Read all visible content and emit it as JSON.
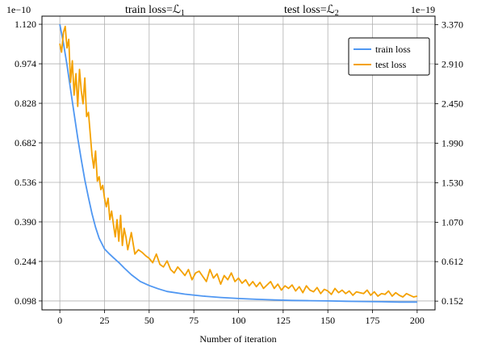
{
  "chart_data": {
    "type": "line",
    "title_left": "train loss=ℒ",
    "title_left_sub": "1",
    "title_right": "test loss=ℒ",
    "title_right_sub": "2",
    "xlabel": "Number of iteration",
    "left_scale_label": "1e−10",
    "right_scale_label": "1e−19",
    "xlim": [
      -10,
      210
    ],
    "xticks": [
      0,
      25,
      50,
      75,
      100,
      125,
      150,
      175,
      200
    ],
    "xtick_labels": [
      "0",
      "25",
      "50",
      "75",
      "100",
      "125",
      "150",
      "175",
      "200"
    ],
    "ylim_left": [
      0.065,
      1.15
    ],
    "yticks_left": [
      0.098,
      0.244,
      0.39,
      0.536,
      0.682,
      0.828,
      0.974,
      1.12
    ],
    "ytick_labels_left": [
      "0.098",
      "0.244",
      "0.390",
      "0.536",
      "0.682",
      "0.828",
      "0.974",
      "1.120"
    ],
    "ylim_right": [
      0.05,
      3.47
    ],
    "yticks_right": [
      0.152,
      0.612,
      1.07,
      1.53,
      1.99,
      2.45,
      2.91,
      3.37
    ],
    "ytick_labels_right": [
      "0.152",
      "0.612",
      "1.070",
      "1.530",
      "1.990",
      "2.450",
      "2.910",
      "3.370"
    ],
    "grid": true,
    "legend_position": "top-right",
    "series": [
      {
        "name": "train loss",
        "axis": "left",
        "color": "#4f97f2",
        "x": [
          0,
          2,
          4,
          6,
          8,
          10,
          12,
          14,
          16,
          18,
          20,
          22,
          25,
          28,
          30,
          33,
          36,
          40,
          45,
          50,
          55,
          60,
          70,
          80,
          90,
          100,
          110,
          120,
          130,
          140,
          150,
          160,
          170,
          180,
          190,
          200
        ],
        "values": [
          1.12,
          1.05,
          0.97,
          0.88,
          0.79,
          0.7,
          0.62,
          0.545,
          0.48,
          0.42,
          0.37,
          0.33,
          0.29,
          0.27,
          0.258,
          0.24,
          0.22,
          0.195,
          0.17,
          0.155,
          0.143,
          0.133,
          0.123,
          0.116,
          0.111,
          0.107,
          0.104,
          0.102,
          0.1,
          0.099,
          0.098,
          0.097,
          0.096,
          0.095,
          0.094,
          0.094
        ]
      },
      {
        "name": "test loss",
        "axis": "right",
        "color": "#f4a100",
        "x": [
          0,
          1,
          2,
          3,
          4,
          5,
          6,
          7,
          8,
          9,
          10,
          11,
          12,
          13,
          14,
          15,
          16,
          17,
          18,
          19,
          20,
          21,
          22,
          23,
          24,
          25,
          26,
          27,
          28,
          29,
          30,
          31,
          32,
          33,
          34,
          35,
          36,
          37,
          38,
          39,
          40,
          42,
          44,
          46,
          48,
          50,
          52,
          54,
          56,
          58,
          60,
          62,
          64,
          66,
          68,
          70,
          72,
          74,
          76,
          78,
          80,
          82,
          84,
          86,
          88,
          90,
          92,
          94,
          96,
          98,
          100,
          102,
          104,
          106,
          108,
          110,
          112,
          114,
          116,
          118,
          120,
          122,
          124,
          126,
          128,
          130,
          132,
          134,
          136,
          138,
          140,
          142,
          144,
          146,
          148,
          150,
          152,
          154,
          156,
          158,
          160,
          162,
          164,
          166,
          168,
          170,
          172,
          174,
          176,
          178,
          180,
          182,
          184,
          186,
          188,
          190,
          192,
          194,
          196,
          198,
          200
        ],
        "values": [
          3.15,
          3.05,
          3.28,
          3.35,
          3.1,
          3.2,
          2.7,
          2.95,
          2.55,
          2.8,
          2.42,
          2.85,
          2.6,
          2.45,
          2.75,
          2.3,
          2.35,
          2.1,
          1.85,
          1.7,
          1.9,
          1.55,
          1.6,
          1.45,
          1.5,
          1.35,
          1.25,
          1.35,
          1.1,
          1.2,
          1.05,
          0.9,
          1.1,
          0.85,
          1.15,
          0.8,
          1.0,
          0.9,
          0.75,
          0.85,
          0.95,
          0.7,
          0.75,
          0.72,
          0.68,
          0.65,
          0.6,
          0.7,
          0.58,
          0.55,
          0.62,
          0.52,
          0.48,
          0.55,
          0.5,
          0.45,
          0.52,
          0.4,
          0.48,
          0.5,
          0.44,
          0.38,
          0.52,
          0.42,
          0.47,
          0.35,
          0.45,
          0.4,
          0.48,
          0.38,
          0.42,
          0.36,
          0.4,
          0.33,
          0.38,
          0.32,
          0.37,
          0.3,
          0.34,
          0.38,
          0.3,
          0.35,
          0.28,
          0.33,
          0.3,
          0.34,
          0.27,
          0.32,
          0.25,
          0.33,
          0.28,
          0.26,
          0.31,
          0.24,
          0.29,
          0.27,
          0.23,
          0.3,
          0.25,
          0.28,
          0.24,
          0.27,
          0.22,
          0.26,
          0.25,
          0.24,
          0.28,
          0.22,
          0.26,
          0.21,
          0.24,
          0.23,
          0.27,
          0.21,
          0.25,
          0.22,
          0.2,
          0.24,
          0.22,
          0.2,
          0.21
        ]
      }
    ]
  }
}
